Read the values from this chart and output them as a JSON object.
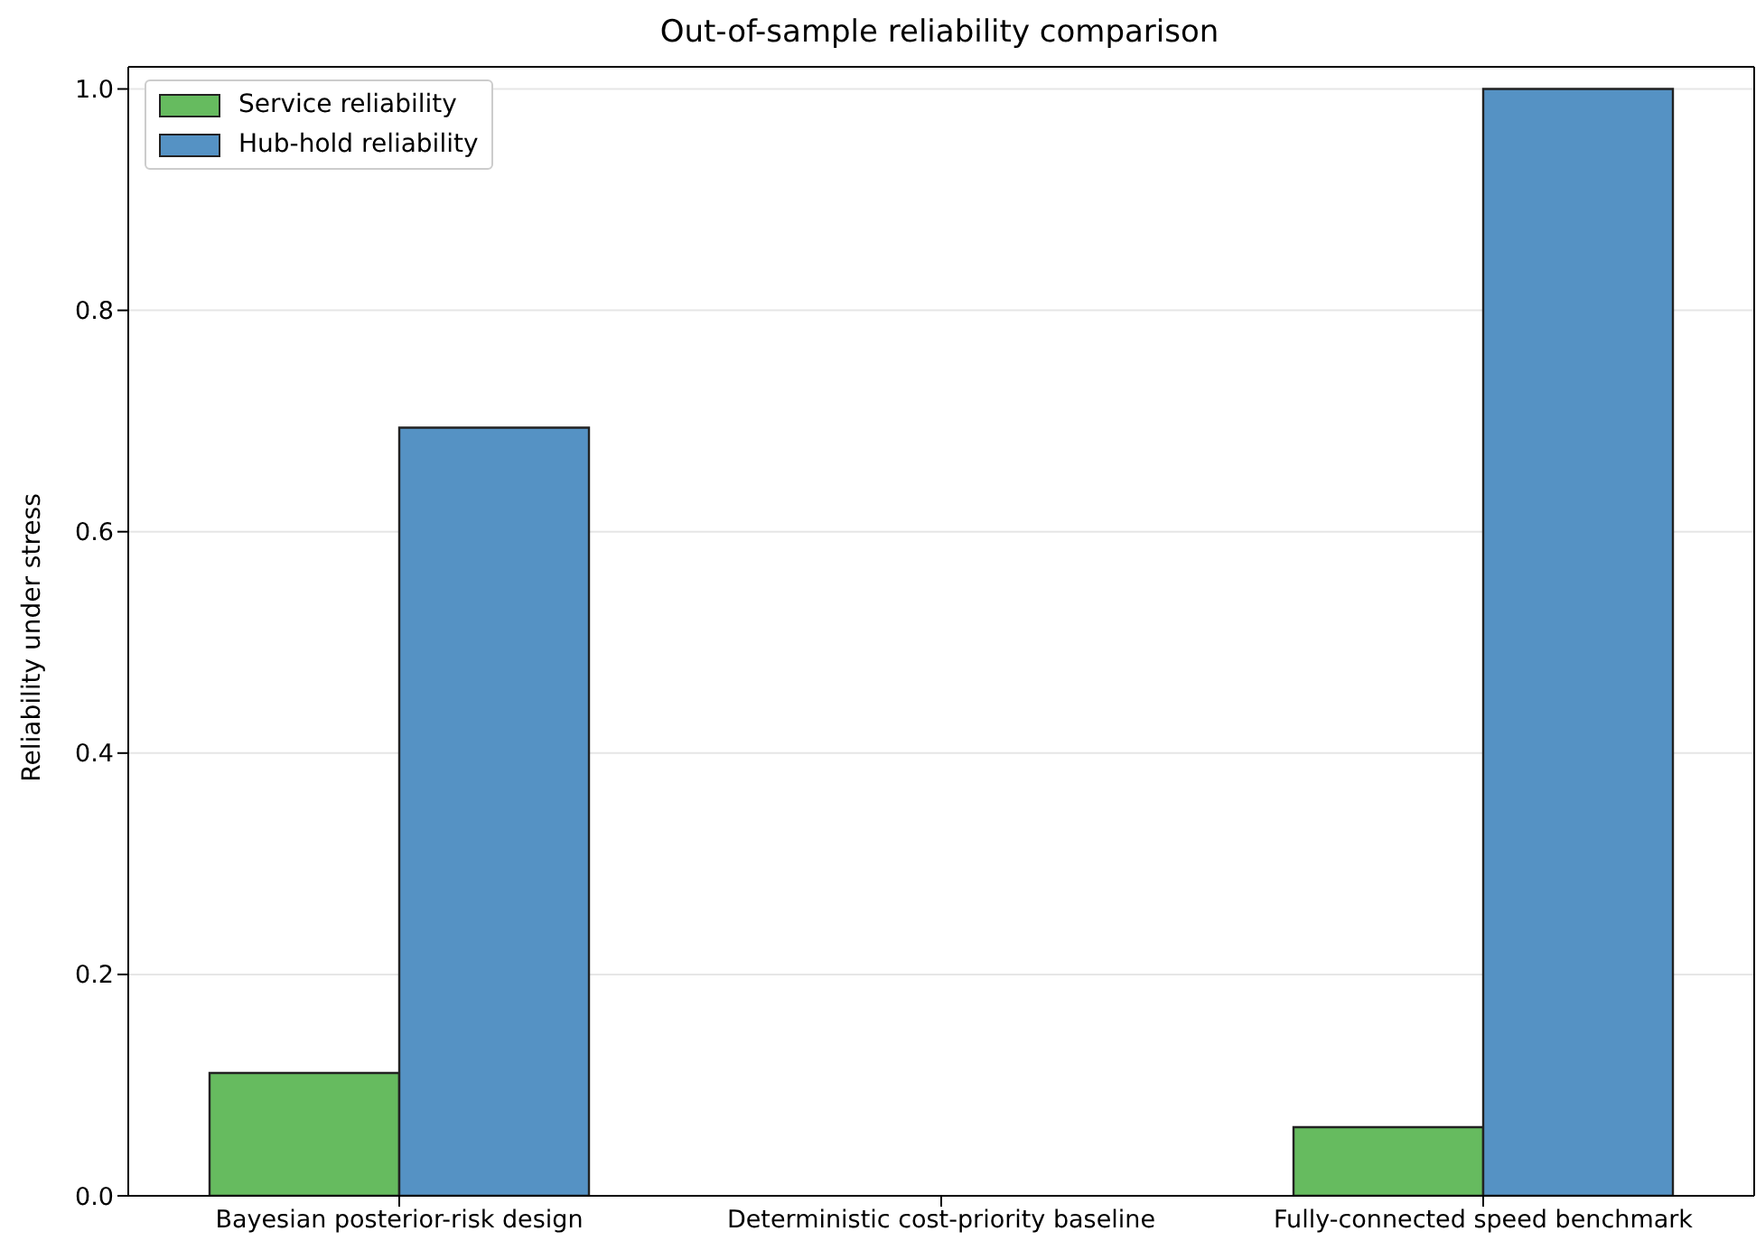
{
  "chart_data": {
    "type": "bar",
    "title": "Out-of-sample reliability comparison",
    "ylabel": "Reliability under stress",
    "categories": [
      "Bayesian posterior-risk design",
      "Deterministic cost-priority baseline",
      "Fully-connected speed benchmark"
    ],
    "series": [
      {
        "name": "Service reliability",
        "color": "#66bb5f",
        "values": [
          0.111,
          0,
          0.062
        ]
      },
      {
        "name": "Hub-hold reliability",
        "color": "#5592c4",
        "values": [
          0.694,
          0,
          1.0
        ]
      }
    ],
    "ylim": [
      0,
      1.02
    ],
    "yticks": [
      {
        "value": 0,
        "label": "0.0"
      },
      0.2,
      0.4,
      0.6,
      0.8,
      {
        "value": 1,
        "label": "1.0"
      }
    ],
    "grid": "y",
    "legend": "top left"
  }
}
